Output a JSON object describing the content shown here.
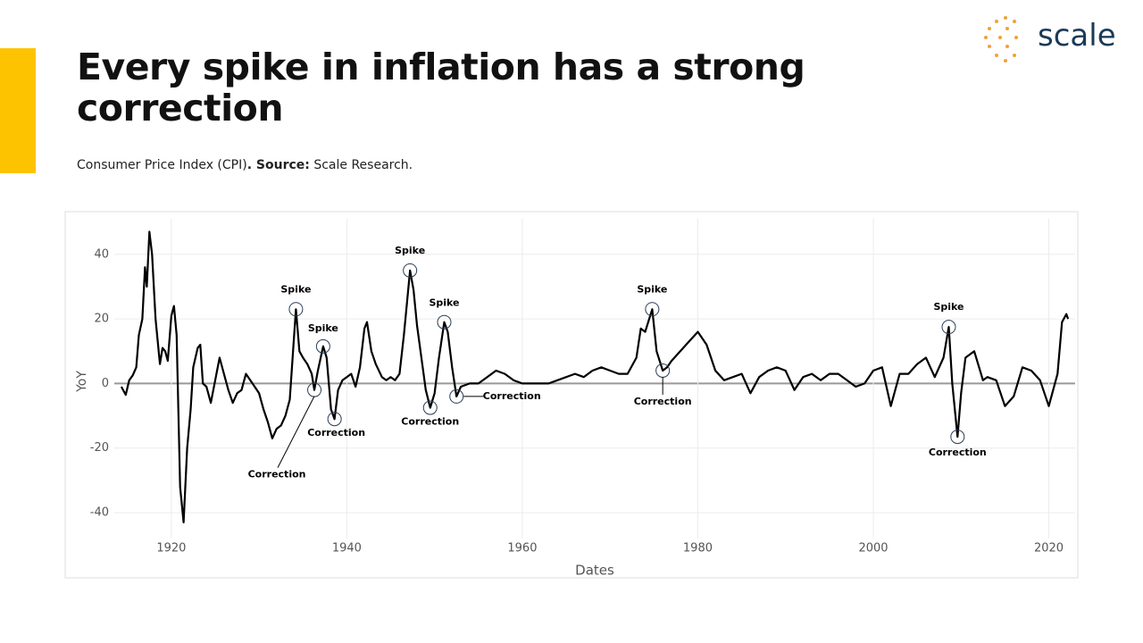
{
  "header": {
    "title": "Every spike in inflation has a strong correction",
    "subtitle": {
      "lead": "Consumer Price Index (CPI)",
      "source_label": ". Source:",
      "source": "Scale Research."
    },
    "logo": "scale"
  },
  "chart_data": {
    "type": "line",
    "xlabel": "Dates",
    "ylabel": "YoY",
    "xlim": [
      1913.5,
      2023
    ],
    "xticks": [
      1920,
      1940,
      1960,
      1980,
      2000,
      2020
    ],
    "ylim": [
      -48,
      51
    ],
    "yticks": [
      -40,
      -20,
      0,
      20,
      40
    ],
    "grid": true,
    "series": [
      {
        "name": "CPI YoY",
        "color": "#000000",
        "x": [
          1914.3,
          1914.8,
          1915.2,
          1915.6,
          1916,
          1916.3,
          1916.7,
          1917,
          1917.2,
          1917.5,
          1917.8,
          1918.2,
          1918.7,
          1919,
          1919.3,
          1919.6,
          1920,
          1920.3,
          1920.6,
          1921,
          1921.4,
          1921.8,
          1922.2,
          1922.5,
          1923,
          1923.3,
          1923.6,
          1924,
          1924.5,
          1925,
          1925.5,
          1926,
          1926.5,
          1927,
          1927.5,
          1928,
          1928.5,
          1929,
          1929.5,
          1930,
          1930.5,
          1931,
          1931.5,
          1932,
          1932.5,
          1933,
          1933.5,
          1934,
          1934.2,
          1934.6,
          1935,
          1935.5,
          1936,
          1936.3,
          1936.7,
          1937.3,
          1937.7,
          1938.2,
          1938.6,
          1939,
          1939.5,
          1940,
          1940.5,
          1941,
          1941.5,
          1942,
          1942.3,
          1942.8,
          1943.3,
          1944,
          1944.5,
          1945,
          1945.5,
          1946,
          1946.5,
          1947.2,
          1947.6,
          1948,
          1948.5,
          1949,
          1949.5,
          1950,
          1950.5,
          1951.1,
          1951.5,
          1952,
          1952.5,
          1953,
          1954,
          1955,
          1956,
          1957,
          1958,
          1959,
          1960,
          1961,
          1962,
          1963,
          1964,
          1965,
          1966,
          1967,
          1968,
          1969,
          1970,
          1971,
          1972,
          1973,
          1973.5,
          1974,
          1974.8,
          1975.3,
          1976,
          1976.5,
          1977,
          1978,
          1979,
          1980,
          1981,
          1982,
          1983,
          1984,
          1985,
          1986,
          1987,
          1988,
          1989,
          1990,
          1991,
          1992,
          1993,
          1994,
          1995,
          1996,
          1997,
          1998,
          1999,
          2000,
          2001,
          2002,
          2003,
          2004,
          2005,
          2006,
          2007,
          2008,
          2008.6,
          2009,
          2009.6,
          2010,
          2010.5,
          2011.5,
          2012.5,
          2013,
          2014,
          2015,
          2016,
          2017,
          2018,
          2019,
          2020,
          2021,
          2021.5,
          2022,
          2022.2
        ],
        "values": [
          -1,
          -3.5,
          1,
          2.5,
          5,
          15,
          20,
          36,
          30,
          47,
          40,
          20,
          6,
          11,
          10,
          7,
          21,
          24,
          15,
          -32,
          -43,
          -20,
          -8,
          5,
          11,
          12,
          0,
          -1,
          -6,
          1,
          8,
          3,
          -2,
          -6,
          -3,
          -2,
          3,
          1,
          -1,
          -3,
          -8,
          -12,
          -17,
          -14,
          -13,
          -10,
          -5,
          15,
          23,
          10,
          8,
          6,
          3,
          -2,
          4,
          11.5,
          8,
          -8,
          -11,
          -2,
          1,
          2,
          3,
          -1,
          5,
          17,
          19,
          10,
          6,
          2,
          1,
          2,
          1,
          3,
          15,
          35,
          29,
          18,
          8,
          -2,
          -7.5,
          -3,
          8,
          19,
          16,
          5,
          -4,
          -1,
          0,
          0,
          2,
          4,
          3,
          1,
          0,
          0,
          0,
          0,
          1,
          2,
          3,
          2,
          4,
          5,
          4,
          3,
          3,
          8,
          17,
          16,
          23,
          10,
          4,
          5,
          7,
          10,
          13,
          16,
          12,
          4,
          1,
          2,
          3,
          -3,
          2,
          4,
          5,
          4,
          -2,
          2,
          3,
          1,
          3,
          3,
          1,
          -1,
          0,
          4,
          5,
          -7,
          3,
          3,
          6,
          8,
          2,
          8,
          17.5,
          0,
          -16.5,
          -3,
          8,
          10,
          1,
          2,
          1,
          -7,
          -4,
          5,
          4,
          1,
          -7,
          3,
          19,
          21.5,
          20
        ]
      }
    ],
    "annotations": [
      {
        "text": "Spike",
        "x": 1934.2,
        "y": 23
      },
      {
        "text": "Correction",
        "x": 1936.3,
        "y": -2
      },
      {
        "text": "Spike",
        "x": 1937.3,
        "y": 11.5
      },
      {
        "text": "Correction",
        "x": 1938.6,
        "y": -11
      },
      {
        "text": "Spike",
        "x": 1947.2,
        "y": 35
      },
      {
        "text": "Correction",
        "x": 1949.5,
        "y": -7.5
      },
      {
        "text": "Spike",
        "x": 1951.1,
        "y": 19
      },
      {
        "text": "Correction",
        "x": 1952.5,
        "y": -4
      },
      {
        "text": "Spike",
        "x": 1974.8,
        "y": 23
      },
      {
        "text": "Correction",
        "x": 1976,
        "y": 4
      },
      {
        "text": "Spike",
        "x": 2008.6,
        "y": 17.5
      },
      {
        "text": "Correction",
        "x": 2009.6,
        "y": -16.5
      }
    ]
  }
}
